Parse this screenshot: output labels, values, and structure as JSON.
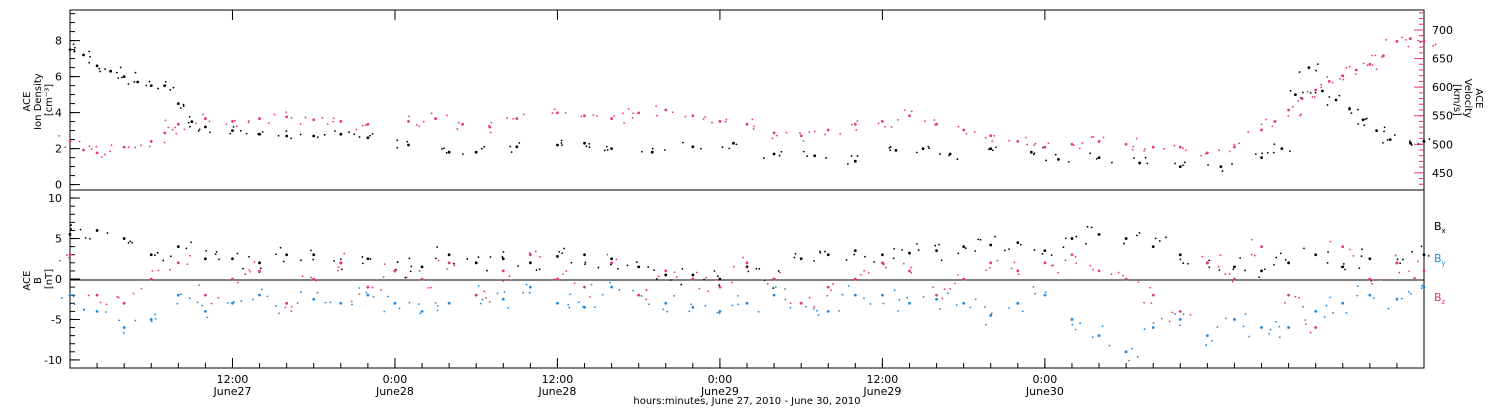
{
  "chart_data": [
    {
      "type": "scatter",
      "panel": "top",
      "ylabel_lines": [
        "ACE",
        "Ion Density",
        "[cm⁻³]"
      ],
      "y2label_lines": [
        "ACE",
        "Velocity",
        "[km/s]"
      ],
      "xlim_hours": [
        0,
        100
      ],
      "ylim": [
        -0.3,
        9.7
      ],
      "y2lim": [
        420,
        735
      ],
      "yticks": [
        0,
        2,
        4,
        6,
        8
      ],
      "y2ticks": [
        450,
        500,
        550,
        600,
        650,
        700
      ],
      "colors": {
        "density": "#000000",
        "velocity": "#e8396b"
      },
      "series": [
        {
          "axis": "left",
          "points": [
            [
              0,
              7.5
            ],
            [
              1,
              7.2
            ],
            [
              2,
              6.6
            ],
            [
              3,
              6.3
            ],
            [
              4,
              6.0
            ],
            [
              5,
              5.7
            ],
            [
              6,
              5.5
            ],
            [
              7,
              5.5
            ],
            [
              8,
              4.5
            ],
            [
              9,
              3.5
            ],
            [
              10,
              3.2
            ],
            [
              12,
              3.0
            ],
            [
              14,
              2.8
            ],
            [
              16,
              2.7
            ],
            [
              18,
              2.7
            ],
            [
              20,
              2.8
            ],
            [
              22,
              2.6
            ],
            [
              25,
              2.2
            ],
            [
              28,
              1.8
            ],
            [
              30,
              1.8
            ],
            [
              33,
              2.1
            ],
            [
              36,
              2.2
            ],
            [
              38,
              2.3
            ],
            [
              40,
              2.0
            ],
            [
              43,
              1.8
            ],
            [
              46,
              2.1
            ],
            [
              49,
              2.3
            ],
            [
              52,
              1.7
            ],
            [
              55,
              1.6
            ],
            [
              58,
              1.3
            ],
            [
              61,
              1.9
            ],
            [
              63,
              2.0
            ],
            [
              65,
              1.7
            ],
            [
              68,
              2.0
            ],
            [
              71,
              1.8
            ],
            [
              73,
              1.4
            ],
            [
              76,
              1.5
            ],
            [
              79,
              1.2
            ],
            [
              82,
              1.0
            ],
            [
              85,
              1.0
            ],
            [
              88,
              1.5
            ],
            [
              89.5,
              2.0
            ],
            [
              90.5,
              5.0
            ],
            [
              91.5,
              6.5
            ],
            [
              92.5,
              5.2
            ],
            [
              93.5,
              4.7
            ],
            [
              94.5,
              4.2
            ],
            [
              95.5,
              3.6
            ],
            [
              96.5,
              3.0
            ],
            [
              97.5,
              2.5
            ],
            [
              99,
              2.3
            ],
            [
              100,
              2.4
            ]
          ]
        },
        {
          "axis": "right",
          "points": [
            [
              0,
              505
            ],
            [
              1,
              490
            ],
            [
              2,
              485
            ],
            [
              4,
              495
            ],
            [
              6,
              505
            ],
            [
              7,
              520
            ],
            [
              8,
              535
            ],
            [
              10,
              545
            ],
            [
              12,
              540
            ],
            [
              14,
              545
            ],
            [
              16,
              548
            ],
            [
              18,
              543
            ],
            [
              20,
              540
            ],
            [
              22,
              535
            ],
            [
              25,
              540
            ],
            [
              27,
              545
            ],
            [
              29,
              535
            ],
            [
              31,
              530
            ],
            [
              33,
              545
            ],
            [
              36,
              555
            ],
            [
              38,
              550
            ],
            [
              40,
              545
            ],
            [
              42,
              555
            ],
            [
              44,
              560
            ],
            [
              46,
              550
            ],
            [
              48,
              540
            ],
            [
              50,
              535
            ],
            [
              52,
              520
            ],
            [
              54,
              515
            ],
            [
              56,
              525
            ],
            [
              58,
              535
            ],
            [
              60,
              540
            ],
            [
              62,
              550
            ],
            [
              64,
              535
            ],
            [
              66,
              525
            ],
            [
              68,
              515
            ],
            [
              70,
              505
            ],
            [
              72,
              495
            ],
            [
              74,
              500
            ],
            [
              76,
              505
            ],
            [
              78,
              500
            ],
            [
              80,
              495
            ],
            [
              82,
              495
            ],
            [
              84,
              485
            ],
            [
              86,
              495
            ],
            [
              88,
              525
            ],
            [
              89,
              540
            ],
            [
              90,
              560
            ],
            [
              91,
              580
            ],
            [
              92,
              595
            ],
            [
              93,
              610
            ],
            [
              94,
              620
            ],
            [
              95,
              630
            ],
            [
              96,
              640
            ],
            [
              97,
              655
            ],
            [
              98,
              680
            ],
            [
              99,
              685
            ],
            [
              100,
              680
            ]
          ]
        }
      ]
    },
    {
      "type": "scatter",
      "panel": "bottom",
      "ylabel_lines": [
        "ACE",
        "B",
        "[nT]"
      ],
      "xlabel": "hours:minutes, June 27, 2010 - June 30, 2010",
      "xlim_hours": [
        0,
        100
      ],
      "ylim": [
        -11,
        11
      ],
      "yticks": [
        -10,
        -5,
        0,
        5,
        10
      ],
      "xtick_hours": [
        12,
        24,
        36,
        48,
        60,
        72
      ],
      "xtick_labels": [
        {
          "time": "12:00",
          "date": "June27"
        },
        {
          "time": "0:00",
          "date": "June28"
        },
        {
          "time": "12:00",
          "date": "June28"
        },
        {
          "time": "0:00",
          "date": "June29"
        },
        {
          "time": "12:00",
          "date": "June29"
        },
        {
          "time": "0:00",
          "date": "June30"
        }
      ],
      "legend": [
        {
          "label": "Bx",
          "base": "B",
          "sub": "x",
          "color": "#000000"
        },
        {
          "label": "By",
          "base": "B",
          "sub": "y",
          "color": "#1c8ae0"
        },
        {
          "label": "Bz",
          "base": "B",
          "sub": "z",
          "color": "#e8396b"
        }
      ],
      "series": [
        {
          "label": "Bx",
          "points": [
            [
              0,
              5.5
            ],
            [
              2,
              6
            ],
            [
              4,
              5
            ],
            [
              6,
              3
            ],
            [
              8,
              4
            ],
            [
              10,
              2.5
            ],
            [
              12,
              2.5
            ],
            [
              14,
              2
            ],
            [
              16,
              3
            ],
            [
              18,
              3
            ],
            [
              20,
              2
            ],
            [
              22,
              2.5
            ],
            [
              24,
              1
            ],
            [
              26,
              1.5
            ],
            [
              28,
              3
            ],
            [
              30,
              2
            ],
            [
              32,
              2.5
            ],
            [
              34,
              2
            ],
            [
              36,
              2.8
            ],
            [
              38,
              3
            ],
            [
              40,
              2.5
            ],
            [
              42,
              1.5
            ],
            [
              44,
              0.5
            ],
            [
              46,
              0.5
            ],
            [
              48,
              0
            ],
            [
              50,
              1.5
            ],
            [
              52,
              0
            ],
            [
              54,
              2.5
            ],
            [
              56,
              3
            ],
            [
              58,
              3.5
            ],
            [
              60,
              3
            ],
            [
              62,
              3.2
            ],
            [
              64,
              3.5
            ],
            [
              66,
              4
            ],
            [
              68,
              4.2
            ],
            [
              70,
              4.5
            ],
            [
              72,
              3.5
            ],
            [
              74,
              5
            ],
            [
              76,
              5.5
            ],
            [
              78,
              5
            ],
            [
              80,
              4
            ],
            [
              82,
              3
            ],
            [
              84,
              2
            ],
            [
              86,
              1.5
            ],
            [
              88,
              1
            ],
            [
              90,
              2
            ],
            [
              92,
              3
            ],
            [
              94,
              1.5
            ],
            [
              96,
              2.5
            ],
            [
              98,
              2
            ],
            [
              100,
              3
            ]
          ]
        },
        {
          "label": "By",
          "points": [
            [
              0,
              -2
            ],
            [
              2,
              -4
            ],
            [
              4,
              -6
            ],
            [
              6,
              -5
            ],
            [
              8,
              -2
            ],
            [
              10,
              -4
            ],
            [
              12,
              -3
            ],
            [
              14,
              -2
            ],
            [
              16,
              -3
            ],
            [
              18,
              -2.5
            ],
            [
              20,
              -3
            ],
            [
              22,
              -2
            ],
            [
              24,
              -3
            ],
            [
              26,
              -4
            ],
            [
              28,
              -3
            ],
            [
              30,
              -2
            ],
            [
              32,
              -2.5
            ],
            [
              34,
              -1
            ],
            [
              36,
              -3
            ],
            [
              38,
              -3.5
            ],
            [
              40,
              -1
            ],
            [
              42,
              -2
            ],
            [
              44,
              -3
            ],
            [
              46,
              -3.5
            ],
            [
              48,
              -4
            ],
            [
              50,
              -3
            ],
            [
              52,
              -2
            ],
            [
              54,
              -3
            ],
            [
              56,
              -4
            ],
            [
              58,
              -2
            ],
            [
              60,
              -2
            ],
            [
              62,
              -3
            ],
            [
              64,
              -2.5
            ],
            [
              66,
              -3
            ],
            [
              68,
              -4.5
            ],
            [
              70,
              -3
            ],
            [
              72,
              -2
            ],
            [
              74,
              -5
            ],
            [
              76,
              -7
            ],
            [
              78,
              -9
            ],
            [
              80,
              -6
            ],
            [
              82,
              -5
            ],
            [
              84,
              -7
            ],
            [
              86,
              -5
            ],
            [
              88,
              -6
            ],
            [
              90,
              -6
            ],
            [
              92,
              -4
            ],
            [
              94,
              -3
            ],
            [
              96,
              -2
            ],
            [
              98,
              -2.5
            ],
            [
              100,
              -1
            ]
          ]
        },
        {
          "label": "Bz",
          "points": [
            [
              0,
              3
            ],
            [
              2,
              -2
            ],
            [
              4,
              -3
            ],
            [
              6,
              0
            ],
            [
              8,
              2
            ],
            [
              10,
              -2
            ],
            [
              12,
              0
            ],
            [
              14,
              1
            ],
            [
              16,
              -3
            ],
            [
              18,
              0
            ],
            [
              20,
              2
            ],
            [
              22,
              -1
            ],
            [
              24,
              1
            ],
            [
              26,
              0
            ],
            [
              28,
              2
            ],
            [
              30,
              -2
            ],
            [
              32,
              1
            ],
            [
              34,
              3
            ],
            [
              36,
              0
            ],
            [
              38,
              -1
            ],
            [
              40,
              2
            ],
            [
              42,
              -2
            ],
            [
              44,
              1
            ],
            [
              46,
              0
            ],
            [
              48,
              -1
            ],
            [
              50,
              2
            ],
            [
              52,
              0
            ],
            [
              54,
              -3
            ],
            [
              56,
              -1
            ],
            [
              58,
              0
            ],
            [
              60,
              2
            ],
            [
              62,
              1
            ],
            [
              64,
              -2
            ],
            [
              66,
              0
            ],
            [
              68,
              2
            ],
            [
              70,
              1
            ],
            [
              72,
              2
            ],
            [
              74,
              3
            ],
            [
              76,
              1
            ],
            [
              78,
              0
            ],
            [
              80,
              -2
            ],
            [
              82,
              -4
            ],
            [
              84,
              2
            ],
            [
              86,
              0
            ],
            [
              88,
              4
            ],
            [
              90,
              -2
            ],
            [
              92,
              -6
            ],
            [
              94,
              4
            ],
            [
              96,
              0
            ],
            [
              98,
              2
            ],
            [
              100,
              1
            ]
          ]
        }
      ]
    }
  ]
}
